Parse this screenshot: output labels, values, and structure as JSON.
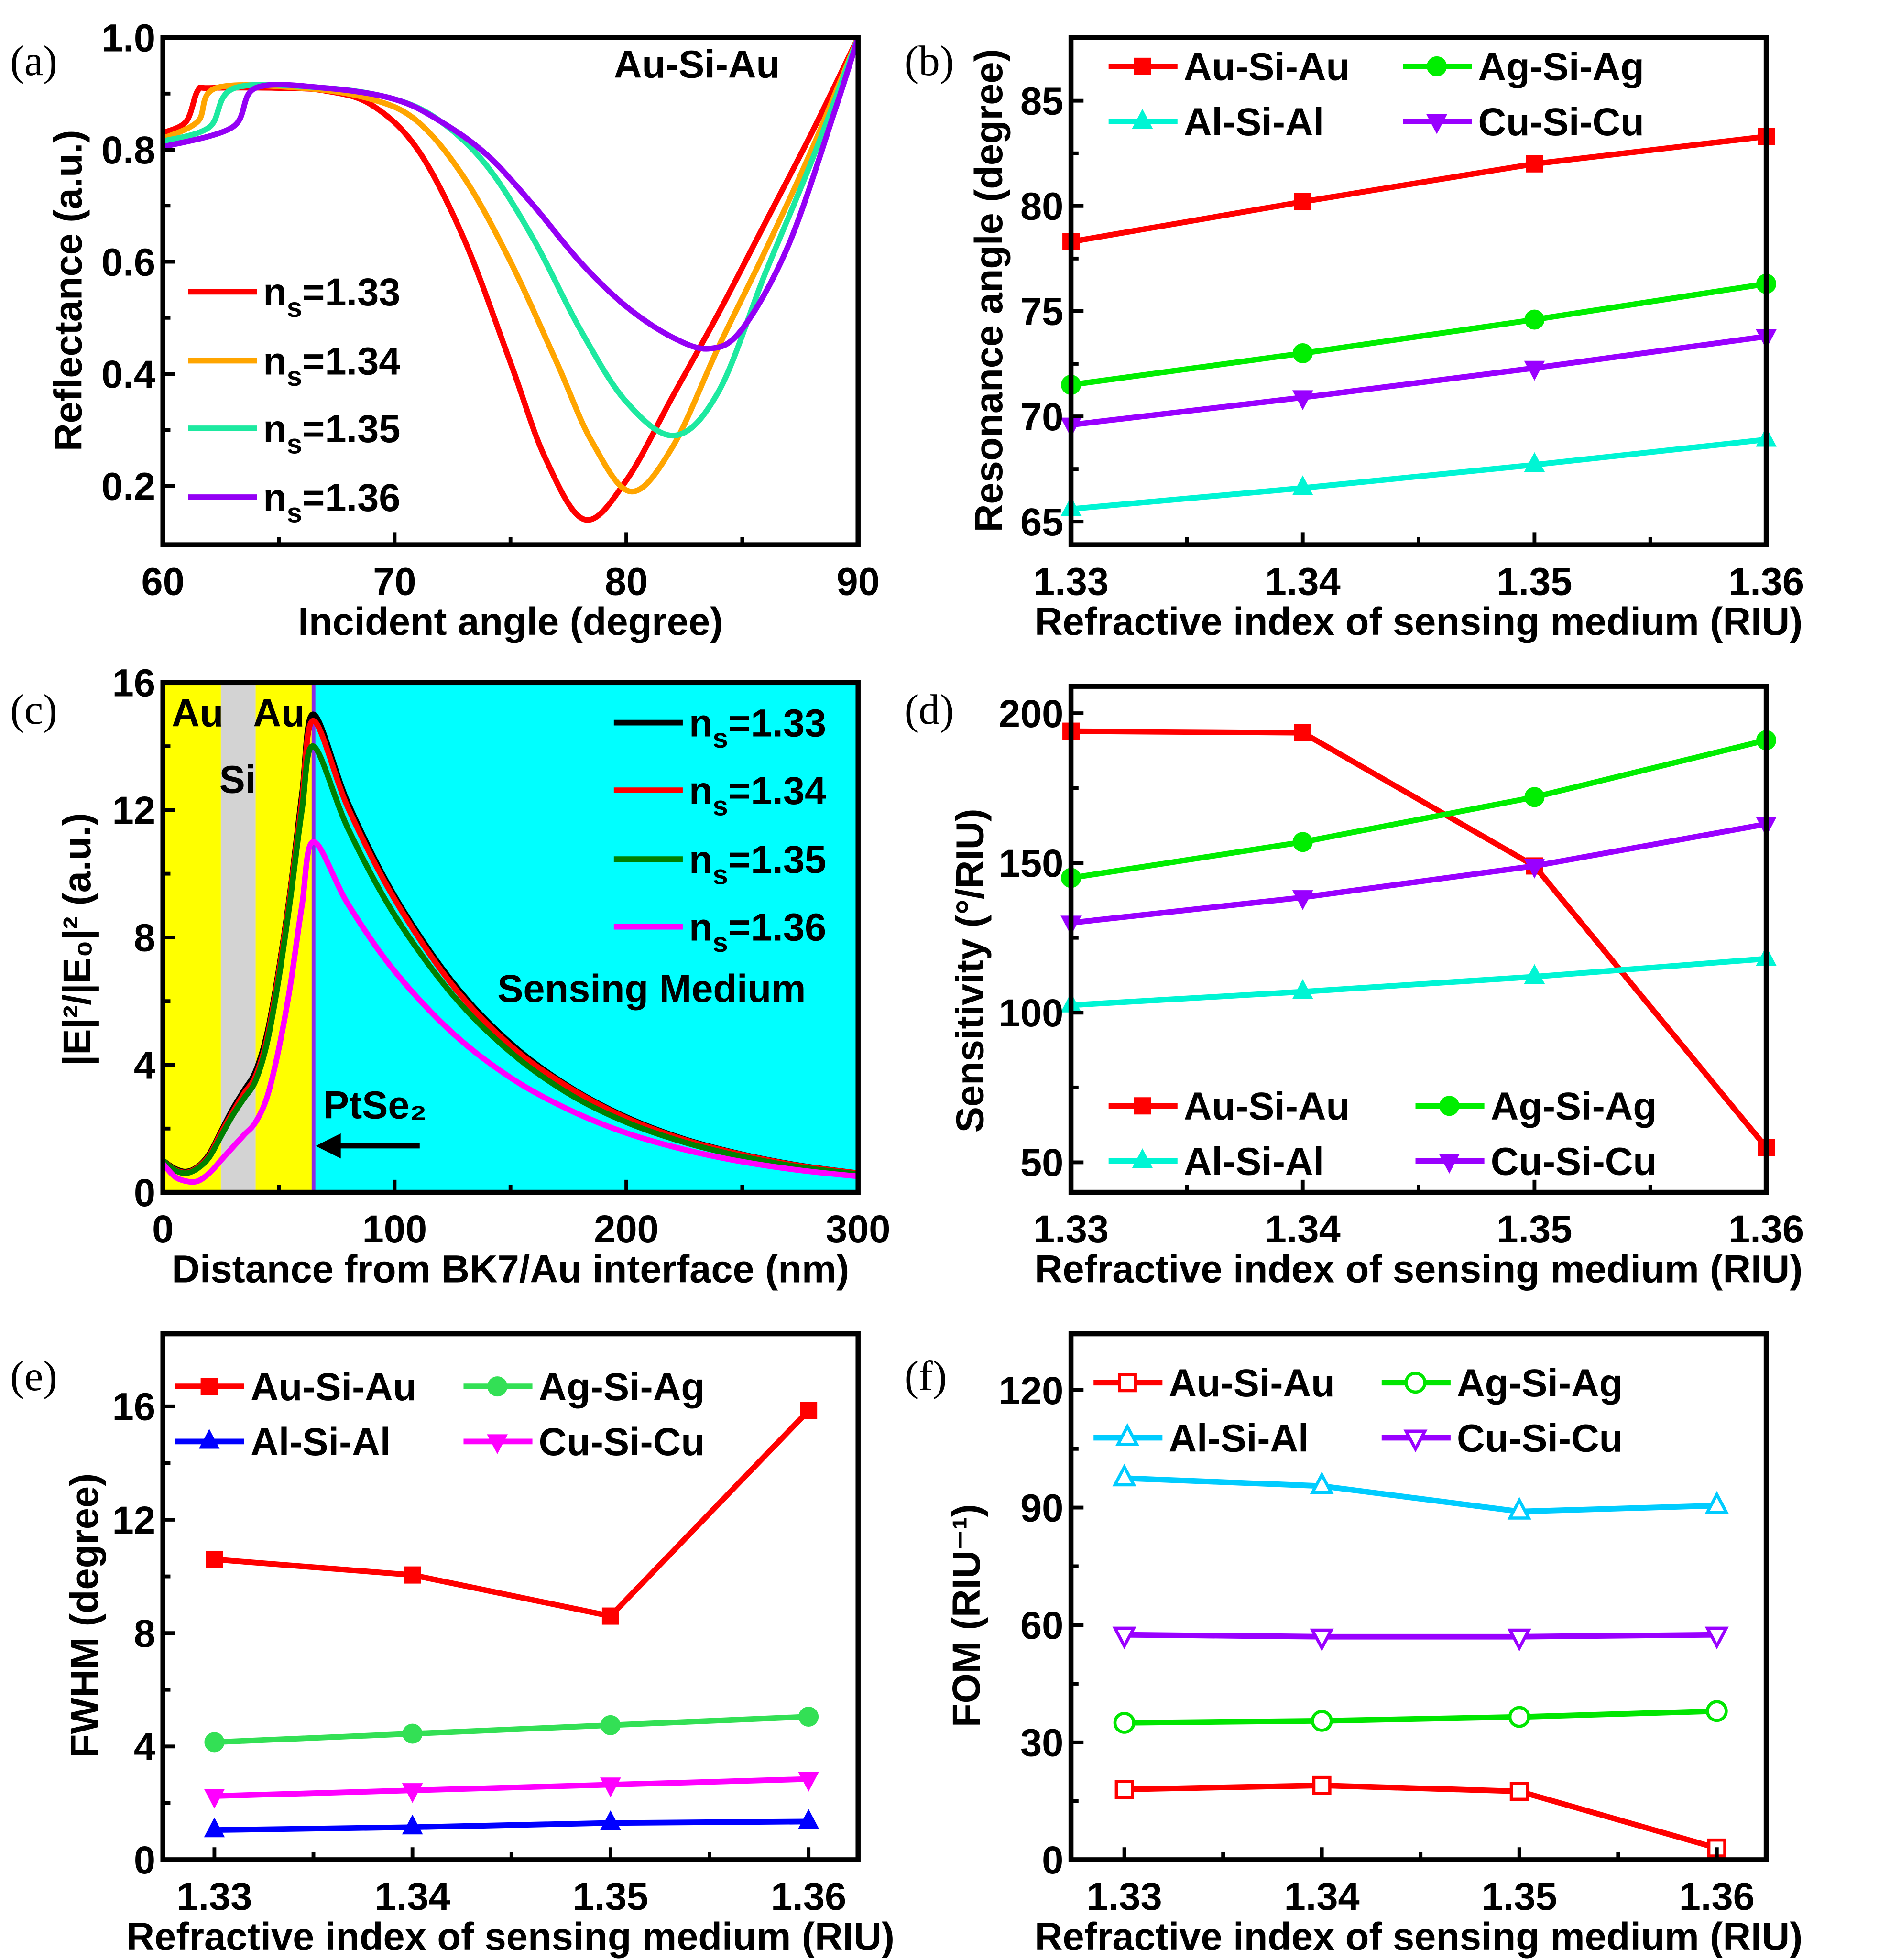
{
  "chart_data": [
    {
      "panel": "(a)",
      "type": "line",
      "smooth": true,
      "xlabel": "Incident angle (degree)",
      "ylabel": "Reflectance (a.u.)",
      "xlim": [
        60,
        90
      ],
      "ylim": [
        0.095,
        1.0
      ],
      "xticks": [
        60,
        70,
        80,
        90
      ],
      "xtick_labels": [
        "60",
        "70",
        "80",
        "90"
      ],
      "yticks": [
        0.2,
        0.4,
        0.6,
        0.8,
        1.0
      ],
      "ytick_labels": [
        "0.2",
        "0.4",
        "0.6",
        "0.8",
        "1.0"
      ],
      "annotation": "Au-Si-Au",
      "legend": "center-left",
      "series": [
        {
          "name": "ns=1.33",
          "color": "#ff0000",
          "marker": "none",
          "x": [
            60,
            61,
            61.5,
            62,
            65,
            67,
            69,
            71,
            73,
            75,
            76.5,
            78.2,
            80,
            82,
            84,
            86,
            88,
            90
          ],
          "y": [
            0.83,
            0.85,
            0.905,
            0.91,
            0.91,
            0.905,
            0.88,
            0.8,
            0.64,
            0.42,
            0.25,
            0.14,
            0.21,
            0.36,
            0.51,
            0.67,
            0.83,
            1.0
          ]
        },
        {
          "name": "ns=1.34",
          "color": "#ffa500",
          "marker": "none",
          "x": [
            60,
            61.5,
            62.3,
            66,
            69,
            71,
            73,
            75,
            77,
            78.5,
            80.2,
            82,
            84,
            86,
            88,
            90
          ],
          "y": [
            0.82,
            0.85,
            0.91,
            0.91,
            0.89,
            0.85,
            0.75,
            0.6,
            0.42,
            0.28,
            0.19,
            0.27,
            0.45,
            0.62,
            0.8,
            1.0
          ]
        },
        {
          "name": "ns=1.35",
          "color": "#1de9a0",
          "marker": "none",
          "x": [
            60,
            62,
            63.1,
            67,
            70,
            72,
            74,
            76,
            78,
            80,
            82.1,
            84,
            86,
            88,
            90
          ],
          "y": [
            0.815,
            0.84,
            0.91,
            0.91,
            0.89,
            0.85,
            0.77,
            0.64,
            0.48,
            0.35,
            0.29,
            0.37,
            0.58,
            0.78,
            1.0
          ]
        },
        {
          "name": "ns=1.36",
          "color": "#9400f5",
          "marker": "none",
          "x": [
            60,
            63,
            64,
            67,
            70,
            72,
            74,
            76,
            78,
            80,
            82,
            83.6,
            85,
            87,
            89,
            90
          ],
          "y": [
            0.805,
            0.84,
            0.91,
            0.91,
            0.89,
            0.85,
            0.79,
            0.7,
            0.6,
            0.52,
            0.465,
            0.445,
            0.48,
            0.63,
            0.87,
            1.0
          ]
        }
      ]
    },
    {
      "panel": "(b)",
      "type": "line",
      "xlabel": "Refractive index of sensing medium (RIU)",
      "ylabel": "Resonance angle (degree)",
      "xlim": [
        1.33,
        1.36
      ],
      "ylim": [
        63.9,
        88
      ],
      "xticks": [
        1.33,
        1.34,
        1.35,
        1.36
      ],
      "xtick_labels": [
        "1.33",
        "1.34",
        "1.35",
        "1.36"
      ],
      "yticks": [
        65,
        70,
        75,
        80,
        85
      ],
      "ytick_labels": [
        "65",
        "70",
        "75",
        "80",
        "85"
      ],
      "legend": "top",
      "series": [
        {
          "name": "Au-Si-Au",
          "color": "#ff0000",
          "marker": "square",
          "x": [
            1.33,
            1.34,
            1.35,
            1.36
          ],
          "y": [
            78.3,
            80.2,
            82.0,
            83.3
          ]
        },
        {
          "name": "Ag-Si-Ag",
          "color": "#00ee00",
          "marker": "circle",
          "x": [
            1.33,
            1.34,
            1.35,
            1.36
          ],
          "y": [
            71.5,
            73.0,
            74.6,
            76.3
          ]
        },
        {
          "name": "Al-Si-Al",
          "color": "#00f5d4",
          "marker": "triangle-up",
          "x": [
            1.33,
            1.34,
            1.35,
            1.36
          ],
          "y": [
            65.6,
            66.6,
            67.7,
            68.9
          ]
        },
        {
          "name": "Cu-Si-Cu",
          "color": "#9900ff",
          "marker": "triangle-down",
          "x": [
            1.33,
            1.34,
            1.35,
            1.36
          ],
          "y": [
            69.6,
            70.9,
            72.3,
            73.8
          ]
        }
      ]
    },
    {
      "panel": "(c)",
      "type": "line",
      "smooth": true,
      "xlabel": "Distance from BK7/Au interface (nm)",
      "ylabel": "|E|²/|E₀|² (a.u.)",
      "xlim": [
        0,
        300
      ],
      "ylim": [
        0,
        16
      ],
      "xticks": [
        0,
        100,
        200,
        300
      ],
      "xtick_labels": [
        "0",
        "100",
        "200",
        "300"
      ],
      "yticks": [
        0,
        4,
        8,
        12,
        16
      ],
      "ytick_labels": [
        "0",
        "4",
        "8",
        "12",
        "16"
      ],
      "legend": "top-right",
      "regions": [
        {
          "label": "Au",
          "from": 0,
          "to": 25,
          "color": "#ffff00"
        },
        {
          "label": "Si",
          "from": 25,
          "to": 40,
          "color": "#d3d3d3"
        },
        {
          "label": "Au",
          "from": 40,
          "to": 65,
          "color": "#ffff00"
        },
        {
          "label": "Sensing Medium",
          "from": 65,
          "to": 300,
          "color": "#00ffff"
        }
      ],
      "layer_annotation": {
        "label": "PtSe₂",
        "position": 65,
        "color": "#8a2be2"
      },
      "series": [
        {
          "name": "ns=1.33",
          "color": "#000000",
          "marker": "none",
          "x": [
            0,
            5,
            10,
            15,
            20,
            25,
            30,
            35,
            40,
            45,
            50,
            55,
            60,
            65,
            80,
            100,
            125,
            150,
            175,
            200,
            225,
            250,
            275,
            300
          ],
          "y": [
            1.0,
            0.75,
            0.65,
            0.8,
            1.2,
            1.9,
            2.6,
            3.2,
            3.8,
            5.0,
            7.0,
            9.5,
            12.5,
            15.0,
            12.2,
            9.3,
            6.6,
            4.68,
            3.33,
            2.36,
            1.67,
            1.19,
            0.84,
            0.6
          ]
        },
        {
          "name": "ns=1.34",
          "color": "#ff0000",
          "marker": "none",
          "x": [
            0,
            5,
            10,
            15,
            20,
            25,
            30,
            35,
            40,
            45,
            50,
            55,
            60,
            65,
            80,
            100,
            125,
            150,
            175,
            200,
            225,
            250,
            275,
            300
          ],
          "y": [
            1.0,
            0.72,
            0.62,
            0.78,
            1.15,
            1.85,
            2.5,
            3.1,
            3.65,
            4.85,
            6.9,
            9.4,
            12.3,
            14.8,
            12.05,
            9.2,
            6.5,
            4.6,
            3.3,
            2.33,
            1.65,
            1.18,
            0.83,
            0.6
          ]
        },
        {
          "name": "ns=1.35",
          "color": "#008000",
          "marker": "none",
          "x": [
            0,
            5,
            10,
            15,
            20,
            25,
            30,
            35,
            40,
            45,
            50,
            55,
            60,
            65,
            80,
            100,
            125,
            150,
            175,
            200,
            225,
            250,
            275,
            300
          ],
          "y": [
            1.0,
            0.7,
            0.6,
            0.75,
            1.1,
            1.75,
            2.4,
            2.95,
            3.5,
            4.7,
            6.7,
            9.2,
            12.0,
            14.0,
            11.4,
            8.7,
            6.2,
            4.4,
            3.1,
            2.2,
            1.57,
            1.12,
            0.79,
            0.57
          ]
        },
        {
          "name": "ns=1.36",
          "color": "#ff00ff",
          "marker": "none",
          "x": [
            0,
            5,
            10,
            15,
            20,
            25,
            30,
            35,
            40,
            45,
            50,
            55,
            60,
            65,
            80,
            100,
            125,
            150,
            175,
            200,
            225,
            250,
            275,
            300
          ],
          "y": [
            0.9,
            0.5,
            0.35,
            0.35,
            0.6,
            1.0,
            1.4,
            1.8,
            2.2,
            3.0,
            4.5,
            6.5,
            9.0,
            11.0,
            9.03,
            6.94,
            5.0,
            3.6,
            2.6,
            1.86,
            1.34,
            0.96,
            0.69,
            0.5
          ]
        }
      ]
    },
    {
      "panel": "(d)",
      "type": "line",
      "xlabel": "Refractive index of sensing medium (RIU)",
      "ylabel": "Sensitivity (°/RIU)",
      "xlim": [
        1.33,
        1.36
      ],
      "ylim": [
        40,
        209
      ],
      "xticks": [
        1.33,
        1.34,
        1.35,
        1.36
      ],
      "xtick_labels": [
        "1.33",
        "1.34",
        "1.35",
        "1.36"
      ],
      "yticks": [
        50,
        100,
        150,
        200
      ],
      "ytick_labels": [
        "50",
        "100",
        "150",
        "200"
      ],
      "legend": "bottom",
      "series": [
        {
          "name": "Au-Si-Au",
          "color": "#ff0000",
          "marker": "square",
          "x": [
            1.33,
            1.34,
            1.35,
            1.36
          ],
          "y": [
            194,
            193.5,
            149,
            55
          ]
        },
        {
          "name": "Ag-Si-Ag",
          "color": "#00ee00",
          "marker": "circle",
          "x": [
            1.33,
            1.34,
            1.35,
            1.36
          ],
          "y": [
            145,
            157,
            172,
            191
          ]
        },
        {
          "name": "Al-Si-Al",
          "color": "#00f5d4",
          "marker": "triangle-up",
          "x": [
            1.33,
            1.34,
            1.35,
            1.36
          ],
          "y": [
            102.5,
            107,
            112,
            118
          ]
        },
        {
          "name": "Cu-Si-Cu",
          "color": "#9900ff",
          "marker": "triangle-down",
          "x": [
            1.33,
            1.34,
            1.35,
            1.36
          ],
          "y": [
            130,
            138.5,
            149,
            163
          ]
        }
      ]
    },
    {
      "panel": "(e)",
      "type": "line",
      "xlabel": "Refractive index of sensing medium (RIU)",
      "ylabel": "FWHM (degree)",
      "xlim": [
        1.3274,
        1.3625
      ],
      "ylim": [
        0,
        18.56
      ],
      "xticks": [
        1.33,
        1.34,
        1.35,
        1.36
      ],
      "xtick_labels": [
        "1.33",
        "1.34",
        "1.35",
        "1.36"
      ],
      "yticks": [
        0,
        4,
        8,
        12,
        16
      ],
      "ytick_labels": [
        "0",
        "4",
        "8",
        "12",
        "16"
      ],
      "legend": "top",
      "series": [
        {
          "name": "Au-Si-Au",
          "color": "#ff0000",
          "marker": "square",
          "x": [
            1.33,
            1.34,
            1.35,
            1.36
          ],
          "y": [
            10.6,
            10.05,
            8.6,
            15.85
          ]
        },
        {
          "name": "Ag-Si-Ag",
          "color": "#33e055",
          "marker": "circle",
          "x": [
            1.33,
            1.34,
            1.35,
            1.36
          ],
          "y": [
            4.15,
            4.45,
            4.75,
            5.05
          ]
        },
        {
          "name": "Al-Si-Al",
          "color": "#0000ff",
          "marker": "triangle-up",
          "x": [
            1.33,
            1.34,
            1.35,
            1.36
          ],
          "y": [
            1.05,
            1.15,
            1.3,
            1.35
          ]
        },
        {
          "name": "Cu-Si-Cu",
          "color": "#ff00ff",
          "marker": "triangle-down",
          "x": [
            1.33,
            1.34,
            1.35,
            1.36
          ],
          "y": [
            2.25,
            2.45,
            2.65,
            2.85
          ]
        }
      ]
    },
    {
      "panel": "(f)",
      "type": "line",
      "open_markers": true,
      "xlabel": "Refractive index of sensing medium (RIU)",
      "ylabel": "FOM (RIU⁻¹)",
      "xlim": [
        1.3273,
        1.3625
      ],
      "ylim": [
        0,
        134.4
      ],
      "xticks": [
        1.33,
        1.34,
        1.35,
        1.36
      ],
      "xtick_labels": [
        "1.33",
        "1.34",
        "1.35",
        "1.36"
      ],
      "yticks": [
        0,
        30,
        60,
        90,
        120
      ],
      "ytick_labels": [
        "0",
        "30",
        "60",
        "90",
        "120"
      ],
      "legend": "top",
      "series": [
        {
          "name": "Au-Si-Au",
          "color": "#ff0000",
          "marker": "square",
          "x": [
            1.33,
            1.34,
            1.35,
            1.36
          ],
          "y": [
            18,
            19,
            17.5,
            3
          ]
        },
        {
          "name": "Ag-Si-Ag",
          "color": "#00e600",
          "marker": "circle",
          "x": [
            1.33,
            1.34,
            1.35,
            1.36
          ],
          "y": [
            35,
            35.5,
            36.5,
            38
          ]
        },
        {
          "name": "Al-Si-Al",
          "color": "#00ccff",
          "marker": "triangle-up",
          "x": [
            1.33,
            1.34,
            1.35,
            1.36
          ],
          "y": [
            97.5,
            95.5,
            89,
            90.5
          ]
        },
        {
          "name": "Cu-Si-Cu",
          "color": "#9900ff",
          "marker": "triangle-down",
          "x": [
            1.33,
            1.34,
            1.35,
            1.36
          ],
          "y": [
            57.5,
            57,
            57,
            57.5
          ]
        }
      ]
    }
  ]
}
